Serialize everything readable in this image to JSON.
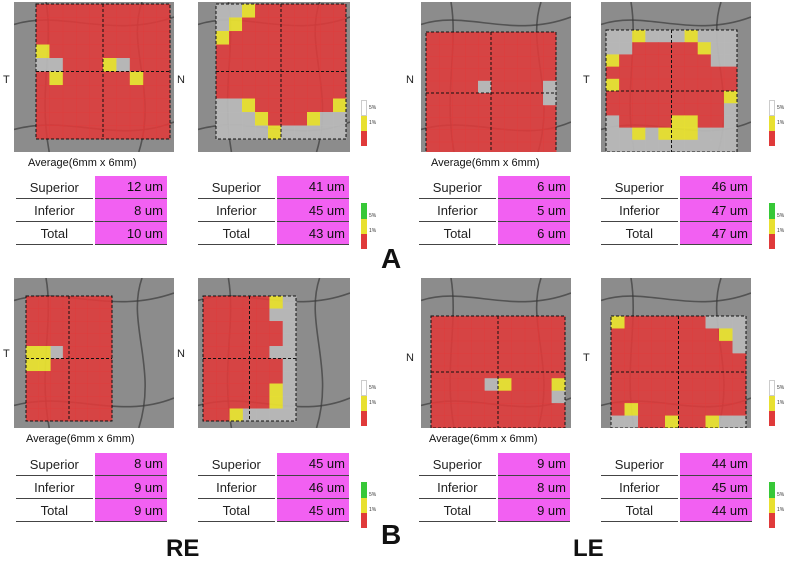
{
  "colors": {
    "red": "#e03a3a",
    "yellow": "#e8e030",
    "gray": "#b8b8b8",
    "magenta": "#f260f2",
    "green": "#37c837"
  },
  "orientation": {
    "t": "T",
    "n": "N"
  },
  "average_label": "Average(6mm x 6mm)",
  "legend": {
    "top": "5%",
    "bottom": "1%"
  },
  "panel_labels": {
    "a": "A",
    "b": "B",
    "re": "RE",
    "le": "LE"
  },
  "tables": [
    {
      "rows": [
        {
          "label": "Superior",
          "value": "12 um"
        },
        {
          "label": "Inferior",
          "value": "8 um"
        },
        {
          "label": "Total",
          "value": "10 um"
        }
      ]
    },
    {
      "rows": [
        {
          "label": "Superior",
          "value": "41 um"
        },
        {
          "label": "Inferior",
          "value": "45 um"
        },
        {
          "label": "Total",
          "value": "43 um"
        }
      ]
    },
    {
      "rows": [
        {
          "label": "Superior",
          "value": "6 um"
        },
        {
          "label": "Inferior",
          "value": "5 um"
        },
        {
          "label": "Total",
          "value": "6 um"
        }
      ]
    },
    {
      "rows": [
        {
          "label": "Superior",
          "value": "46 um"
        },
        {
          "label": "Inferior",
          "value": "47 um"
        },
        {
          "label": "Total",
          "value": "47 um"
        }
      ]
    },
    {
      "rows": [
        {
          "label": "Superior",
          "value": "8 um"
        },
        {
          "label": "Inferior",
          "value": "9 um"
        },
        {
          "label": "Total",
          "value": "9 um"
        }
      ]
    },
    {
      "rows": [
        {
          "label": "Superior",
          "value": "45 um"
        },
        {
          "label": "Inferior",
          "value": "46 um"
        },
        {
          "label": "Total",
          "value": "45 um"
        }
      ]
    },
    {
      "rows": [
        {
          "label": "Superior",
          "value": "9 um"
        },
        {
          "label": "Inferior",
          "value": "8 um"
        },
        {
          "label": "Total",
          "value": "9 um"
        }
      ]
    },
    {
      "rows": [
        {
          "label": "Superior",
          "value": "44 um"
        },
        {
          "label": "Inferior",
          "value": "45 um"
        },
        {
          "label": "Total",
          "value": "44 um"
        }
      ]
    }
  ]
}
